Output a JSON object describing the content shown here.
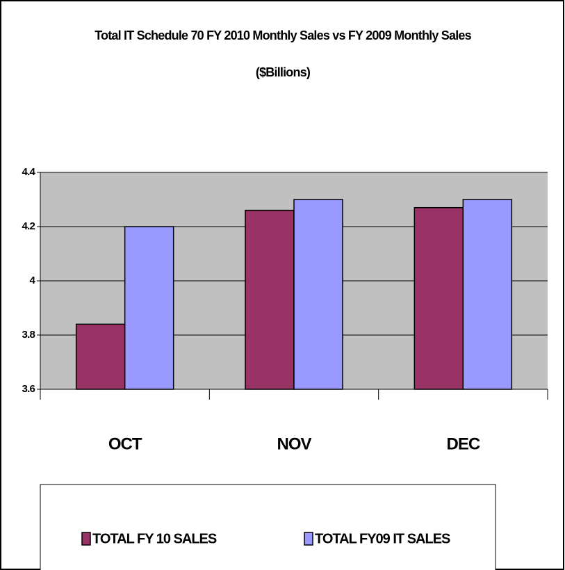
{
  "chart_data": {
    "type": "bar",
    "title": "Total IT Schedule 70 FY 2010 Monthly Sales vs FY 2009 Monthly Sales",
    "subtitle": "($Billions)",
    "categories": [
      "OCT",
      "NOV",
      "DEC"
    ],
    "series": [
      {
        "name": "TOTAL FY 10 SALES",
        "color": "#993366",
        "values": [
          3.84,
          4.26,
          4.27
        ]
      },
      {
        "name": "TOTAL FY09 IT SALES",
        "color": "#9999ff",
        "values": [
          4.2,
          4.3,
          4.3
        ]
      }
    ],
    "ylim": [
      3.6,
      4.4
    ],
    "yticks": [
      3.6,
      3.8,
      4,
      4.2,
      4.4
    ],
    "grid": true,
    "legend": "bottom"
  }
}
